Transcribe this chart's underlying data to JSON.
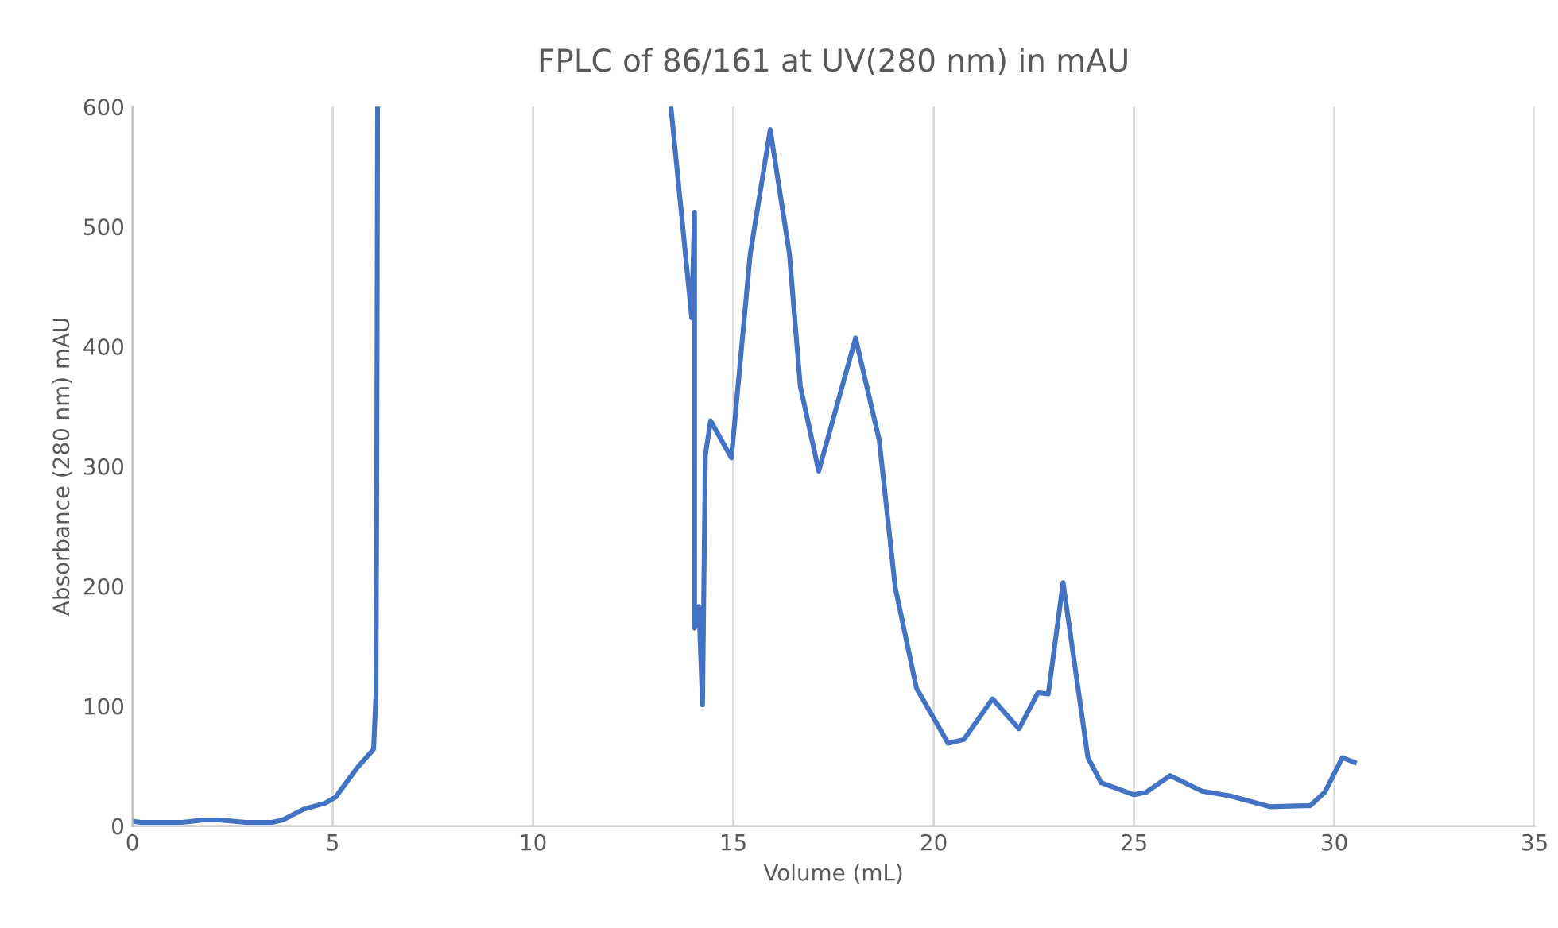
{
  "chart_data": {
    "type": "line",
    "title": "FPLC of 86/161 at UV(280 nm) in mAU",
    "xlabel": "Volume (mL)",
    "ylabel": "Absorbance (280 nm) mAU",
    "xlim": [
      0,
      35
    ],
    "xticks": [
      0,
      5,
      10,
      15,
      20,
      25,
      30,
      35
    ],
    "ylim": [
      0,
      600
    ],
    "yticks": [
      0,
      100,
      200,
      300,
      400,
      500,
      600
    ],
    "grid": "x",
    "legend": false,
    "marker": "none",
    "line_style": "solid",
    "series": [
      {
        "color": "#4472c4",
        "x": [
          0,
          0.2,
          1.25,
          1.78,
          2.17,
          2.83,
          3.49,
          3.75,
          4.28,
          4.81,
          5.07,
          5.6,
          6.02,
          6.08,
          6.1,
          6.12,
          9.8,
          13.44,
          13.96,
          14.03,
          14.03,
          14.14,
          14.23,
          14.3,
          14.43,
          14.95,
          15.42,
          15.92,
          16.4,
          16.67,
          17.13,
          18.05,
          18.64,
          19.04,
          19.57,
          20.36,
          20.75,
          21.47,
          22.13,
          22.6,
          22.86,
          23.23,
          23.59,
          23.85,
          24.18,
          25.0,
          25.3,
          25.9,
          26.7,
          27.4,
          28.4,
          29.4,
          29.76,
          30.2,
          30.5
        ],
        "values": [
          4,
          3,
          3,
          5,
          5,
          3,
          3,
          5,
          14,
          19,
          24,
          48,
          64,
          110,
          300,
          600,
          null,
          600,
          424,
          512,
          165,
          183,
          101,
          309,
          338,
          307,
          477,
          581,
          477,
          367,
          296,
          407,
          322,
          199,
          115,
          69,
          72,
          106,
          81,
          111,
          110,
          203,
          118,
          57,
          36,
          26,
          28,
          42,
          29,
          25,
          16,
          17,
          28,
          57,
          53
        ]
      }
    ]
  }
}
